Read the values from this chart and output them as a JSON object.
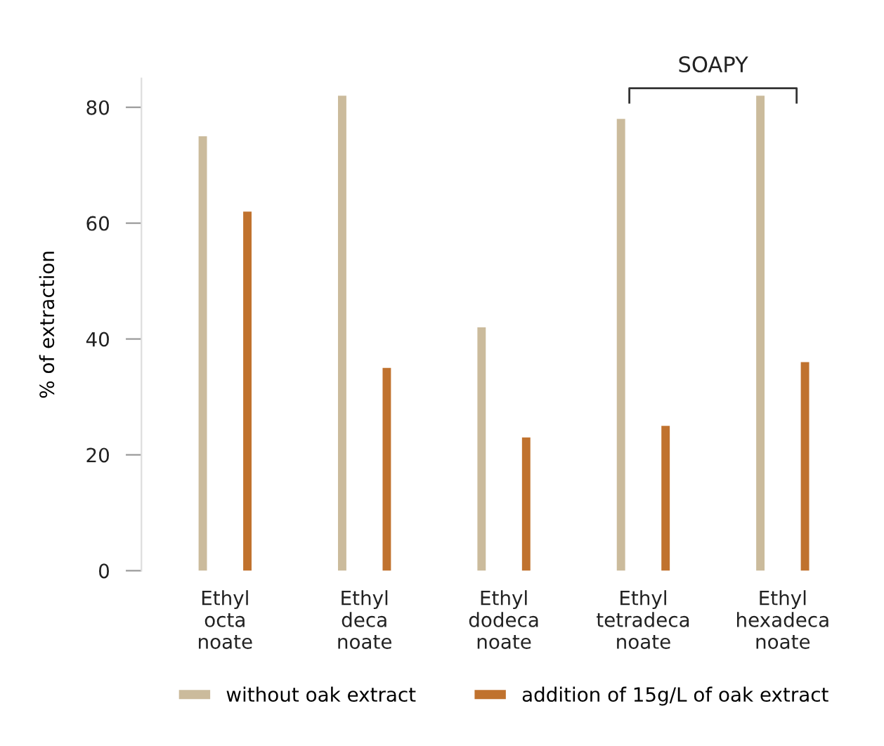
{
  "chart_data": {
    "type": "bar",
    "ylabel": "% of extraction",
    "categories": [
      "Ethyl\nocta\nnoate",
      "Ethyl\ndeca\nnoate",
      "Ethyl\ndodeca\nnoate",
      "Ethyl\ntetradeca\nnoate",
      "Ethyl\nhexadeca\nnoate"
    ],
    "series": [
      {
        "name": "without oak extract",
        "color": "#cbbb9c",
        "values": [
          75,
          82,
          42,
          78,
          82
        ]
      },
      {
        "name": "addition of 15g/L of oak extract",
        "color": "#c0722e",
        "values": [
          62,
          35,
          23,
          25,
          36
        ]
      }
    ],
    "ylim": [
      0,
      85
    ],
    "yticks": [
      0,
      20,
      40,
      60,
      80
    ],
    "grid": false,
    "legend": "bottom",
    "annotations": [
      "SOAPY"
    ]
  }
}
